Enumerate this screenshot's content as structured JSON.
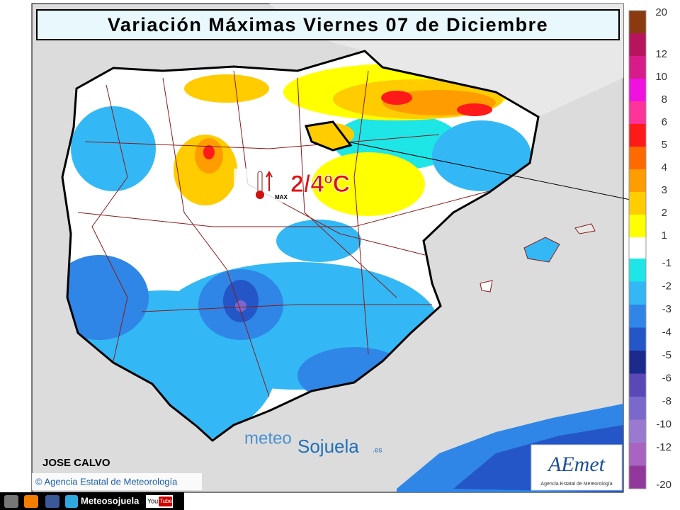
{
  "title": "Variación Máximas Viernes 07 de Diciembre",
  "annotation": {
    "value": "2/4ºC",
    "icon_label": "MAX"
  },
  "author": "JOSE CALVO",
  "credit": "© Agencia Estatal de Meteorología",
  "watermark": {
    "part1": "meteo",
    "part2": "Sojuela",
    "suffix": ".es"
  },
  "logo": {
    "name": "AEmet",
    "caption": "Agencia Estatal de Meteorología"
  },
  "footer": {
    "brand": "Meteosojuela",
    "youtube_1": "You",
    "youtube_2": "Tube"
  },
  "legend": {
    "positive": [
      {
        "label": "20",
        "color": "#8b3a10"
      },
      {
        "label": "12",
        "color": "#b8145e"
      },
      {
        "label": "10",
        "color": "#d81b8a"
      },
      {
        "label": "8",
        "color": "#f010e0"
      },
      {
        "label": "6",
        "color": "#ff3399"
      },
      {
        "label": "5",
        "color": "#ff1a1a"
      },
      {
        "label": "4",
        "color": "#ff6a00"
      },
      {
        "label": "3",
        "color": "#ff9d00"
      },
      {
        "label": "2",
        "color": "#ffcc00"
      },
      {
        "label": "1",
        "color": "#ffff00"
      }
    ],
    "negative": [
      {
        "label": "-1",
        "color": "#1ee6e6"
      },
      {
        "label": "-2",
        "color": "#33b8f5"
      },
      {
        "label": "-3",
        "color": "#2f86e6"
      },
      {
        "label": "-4",
        "color": "#2456c8"
      },
      {
        "label": "-5",
        "color": "#1c2a8c"
      },
      {
        "label": "-6",
        "color": "#5a48b8"
      },
      {
        "label": "-8",
        "color": "#7a68cc"
      },
      {
        "label": "-10",
        "color": "#9a7ad0"
      },
      {
        "label": "-12",
        "color": "#a864c0"
      },
      {
        "label": "-20",
        "color": "#92389c"
      }
    ]
  }
}
